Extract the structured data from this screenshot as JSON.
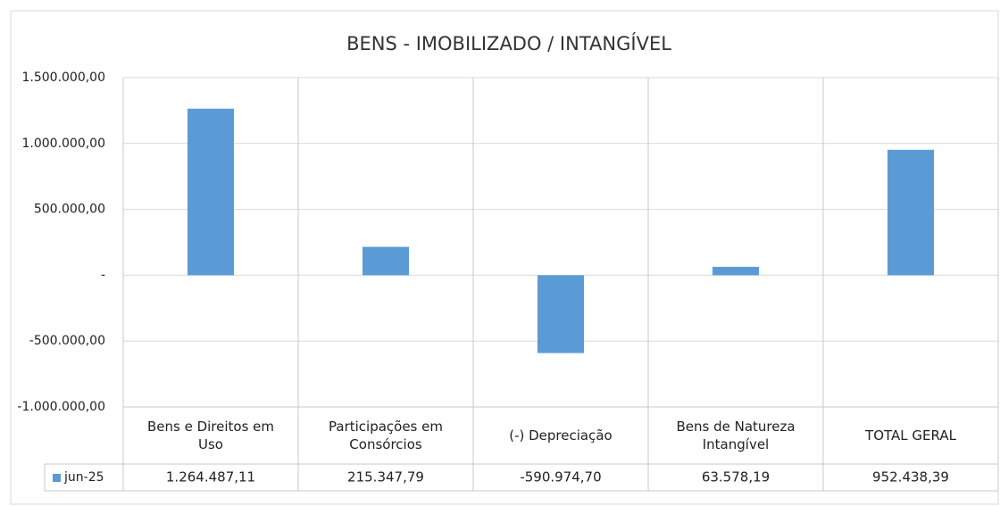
{
  "chart_data": {
    "type": "bar",
    "title": "BENS - IMOBILIZADO / INTANGÍVEL",
    "categories": [
      "Bens e Direitos em Uso",
      "Participações em Consórcios",
      "(-) Depreciação",
      "Bens de Natureza Intangível",
      "TOTAL GERAL"
    ],
    "series": [
      {
        "name": "jun-25",
        "color": "#5b9bd5",
        "values": [
          1264487.11,
          215347.79,
          -590974.7,
          63578.19,
          952438.39
        ],
        "value_labels": [
          "1.264.487,11",
          "215.347,79",
          "-590.974,70",
          "63.578,19",
          "952.438,39"
        ]
      }
    ],
    "ylim": [
      -1000000,
      1500000
    ],
    "yticks": [
      {
        "value": -1000000,
        "label": "-1.000.000,00"
      },
      {
        "value": -500000,
        "label": "-500.000,00"
      },
      {
        "value": 0,
        "label": "-"
      },
      {
        "value": 500000,
        "label": "500.000,00"
      },
      {
        "value": 1000000,
        "label": "1.000.000,00"
      },
      {
        "value": 1500000,
        "label": "1.500.000,00"
      }
    ],
    "grid": true,
    "legend": "data-table"
  }
}
